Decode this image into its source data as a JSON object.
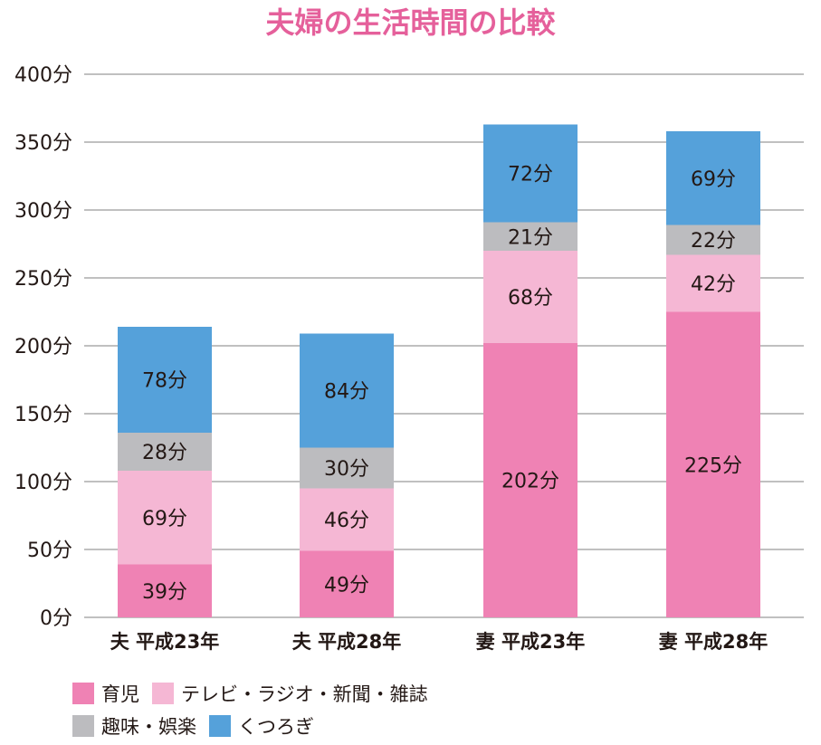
{
  "chart_data": {
    "type": "bar",
    "stacked": true,
    "title": "夫婦の生活時間の比較",
    "categories": [
      "夫 平成23年",
      "夫 平成28年",
      "妻 平成23年",
      "妻 平成28年"
    ],
    "series": [
      {
        "name": "育児",
        "values": [
          39,
          49,
          202,
          225
        ],
        "labels": [
          "39分",
          "49分",
          "202分",
          "225分"
        ],
        "color": "#ef82b4"
      },
      {
        "name": "テレビ・ラジオ・新聞・雑誌",
        "values": [
          69,
          46,
          68,
          42
        ],
        "labels": [
          "69分",
          "46分",
          "68分",
          "42分"
        ],
        "color": "#f5b7d4"
      },
      {
        "name": "趣味・娯楽",
        "values": [
          28,
          30,
          21,
          22
        ],
        "labels": [
          "28分",
          "30分",
          "21分",
          "22分"
        ],
        "color": "#bcbcbf"
      },
      {
        "name": "くつろぎ",
        "values": [
          78,
          84,
          72,
          69
        ],
        "labels": [
          "78分",
          "84分",
          "72分",
          "69分"
        ],
        "color": "#55a1da"
      }
    ],
    "ylim": [
      0,
      400
    ],
    "yticks": [
      0,
      50,
      100,
      150,
      200,
      250,
      300,
      350,
      400
    ],
    "ytick_labels": [
      "0分",
      "50分",
      "100分",
      "150分",
      "200分",
      "250分",
      "300分",
      "350分",
      "400分"
    ],
    "grid": true,
    "legend_position": "bottom"
  },
  "colors": {
    "title": "#e5609b",
    "grid": "#808080",
    "text": "#231815"
  }
}
